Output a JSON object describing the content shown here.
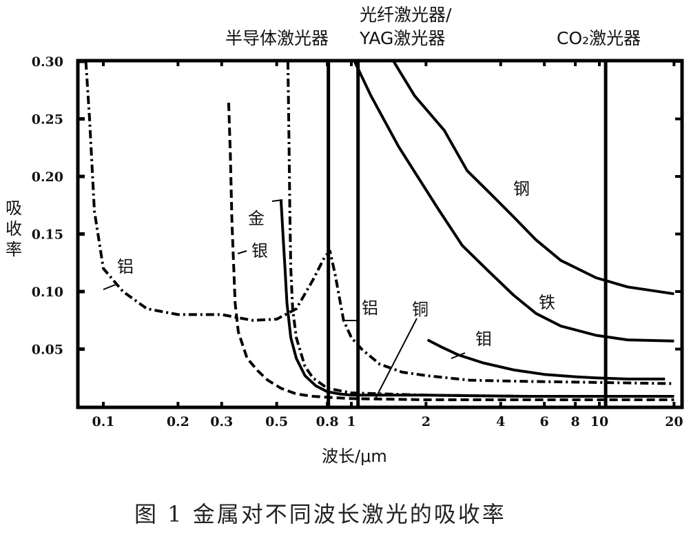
{
  "chart_data": {
    "type": "line",
    "title": "",
    "caption": "图 1  金属对不同波长激光的吸收率",
    "xlabel": "波长/μm",
    "ylabel": "吸收率",
    "x_scale": "log",
    "xlim": [
      0.08,
      22
    ],
    "ylim": [
      0,
      0.3
    ],
    "grid": false,
    "x_ticks": [
      0.1,
      0.2,
      0.3,
      0.5,
      0.8,
      1,
      2,
      4,
      6,
      8,
      10,
      20
    ],
    "x_tick_labels": [
      "0.1",
      "0.2",
      "0.3",
      "0.5",
      "0.8",
      "1",
      "2",
      "4",
      "6",
      "8",
      "10",
      "20"
    ],
    "y_ticks": [
      0.05,
      0.1,
      0.15,
      0.2,
      0.25,
      0.3
    ],
    "y_tick_labels": [
      "0.05",
      "0.10",
      "0.15",
      "0.20",
      "0.25",
      "0.30"
    ],
    "laser_lines": [
      {
        "label": "半导体激光器",
        "x": 0.808
      },
      {
        "label_line1": "光纤激光器/",
        "label_line2": "YAG激光器",
        "x": 1.064
      },
      {
        "label": "CO₂激光器",
        "x": 10.6
      }
    ],
    "series": [
      {
        "name": "铝",
        "style": "dash-dot",
        "x": [
          0.085,
          0.088,
          0.092,
          0.1,
          0.12,
          0.15,
          0.2,
          0.3,
          0.4,
          0.5,
          0.6,
          0.7,
          0.78,
          0.82,
          0.86,
          0.93,
          1.0,
          1.1,
          1.3,
          1.6,
          2,
          3,
          5,
          10,
          20
        ],
        "y": [
          0.3,
          0.25,
          0.17,
          0.12,
          0.1,
          0.085,
          0.08,
          0.08,
          0.075,
          0.076,
          0.085,
          0.11,
          0.13,
          0.135,
          0.115,
          0.075,
          0.06,
          0.05,
          0.037,
          0.03,
          0.027,
          0.023,
          0.022,
          0.021,
          0.02
        ]
      },
      {
        "name": "银",
        "style": "dashed",
        "x": [
          0.32,
          0.325,
          0.33,
          0.34,
          0.35,
          0.38,
          0.42,
          0.46,
          0.52,
          0.6,
          0.7,
          0.82,
          1,
          2,
          5,
          10,
          20
        ],
        "y": [
          0.264,
          0.22,
          0.16,
          0.09,
          0.065,
          0.042,
          0.031,
          0.023,
          0.016,
          0.011,
          0.009,
          0.008,
          0.007,
          0.006,
          0.006,
          0.006,
          0.006
        ]
      },
      {
        "name": "铜",
        "style": "dash-dot",
        "x": [
          0.555,
          0.56,
          0.565,
          0.57,
          0.58,
          0.6,
          0.65,
          0.7,
          0.8,
          1,
          2,
          5,
          10,
          20
        ],
        "y": [
          0.3,
          0.24,
          0.17,
          0.12,
          0.085,
          0.06,
          0.035,
          0.025,
          0.016,
          0.012,
          0.01,
          0.009,
          0.009,
          0.009
        ]
      },
      {
        "name": "金",
        "style": "solid",
        "x": [
          0.52,
          0.525,
          0.53,
          0.54,
          0.55,
          0.57,
          0.6,
          0.65,
          0.72,
          0.8,
          0.9,
          1,
          1.5,
          2,
          5,
          10,
          20
        ],
        "y": [
          0.18,
          0.165,
          0.15,
          0.12,
          0.09,
          0.06,
          0.042,
          0.027,
          0.018,
          0.013,
          0.011,
          0.01,
          0.01,
          0.01,
          0.009,
          0.009,
          0.009
        ]
      },
      {
        "name": "钢",
        "style": "solid",
        "x": [
          1.48,
          1.8,
          2.37,
          2.93,
          3.6,
          4.5,
          5.55,
          7,
          9.7,
          13,
          20
        ],
        "y": [
          0.3,
          0.27,
          0.24,
          0.205,
          0.186,
          0.165,
          0.145,
          0.127,
          0.112,
          0.104,
          0.098
        ]
      },
      {
        "name": "铁",
        "style": "solid",
        "x": [
          1.03,
          1.2,
          1.55,
          2.22,
          2.8,
          3.6,
          4.5,
          5.55,
          7,
          9.7,
          13,
          20
        ],
        "y": [
          0.3,
          0.27,
          0.226,
          0.173,
          0.14,
          0.117,
          0.097,
          0.081,
          0.07,
          0.062,
          0.058,
          0.057
        ]
      },
      {
        "name": "钼",
        "style": "solid",
        "x": [
          2.03,
          2.3,
          2.7,
          3.4,
          4.5,
          6,
          8,
          9.7,
          13,
          18.4
        ],
        "y": [
          0.058,
          0.052,
          0.045,
          0.038,
          0.032,
          0.028,
          0.026,
          0.025,
          0.024,
          0.024
        ]
      }
    ],
    "curve_labels": [
      "铝",
      "金",
      "银",
      "铝",
      "铜",
      "钢",
      "铁",
      "钼"
    ]
  }
}
